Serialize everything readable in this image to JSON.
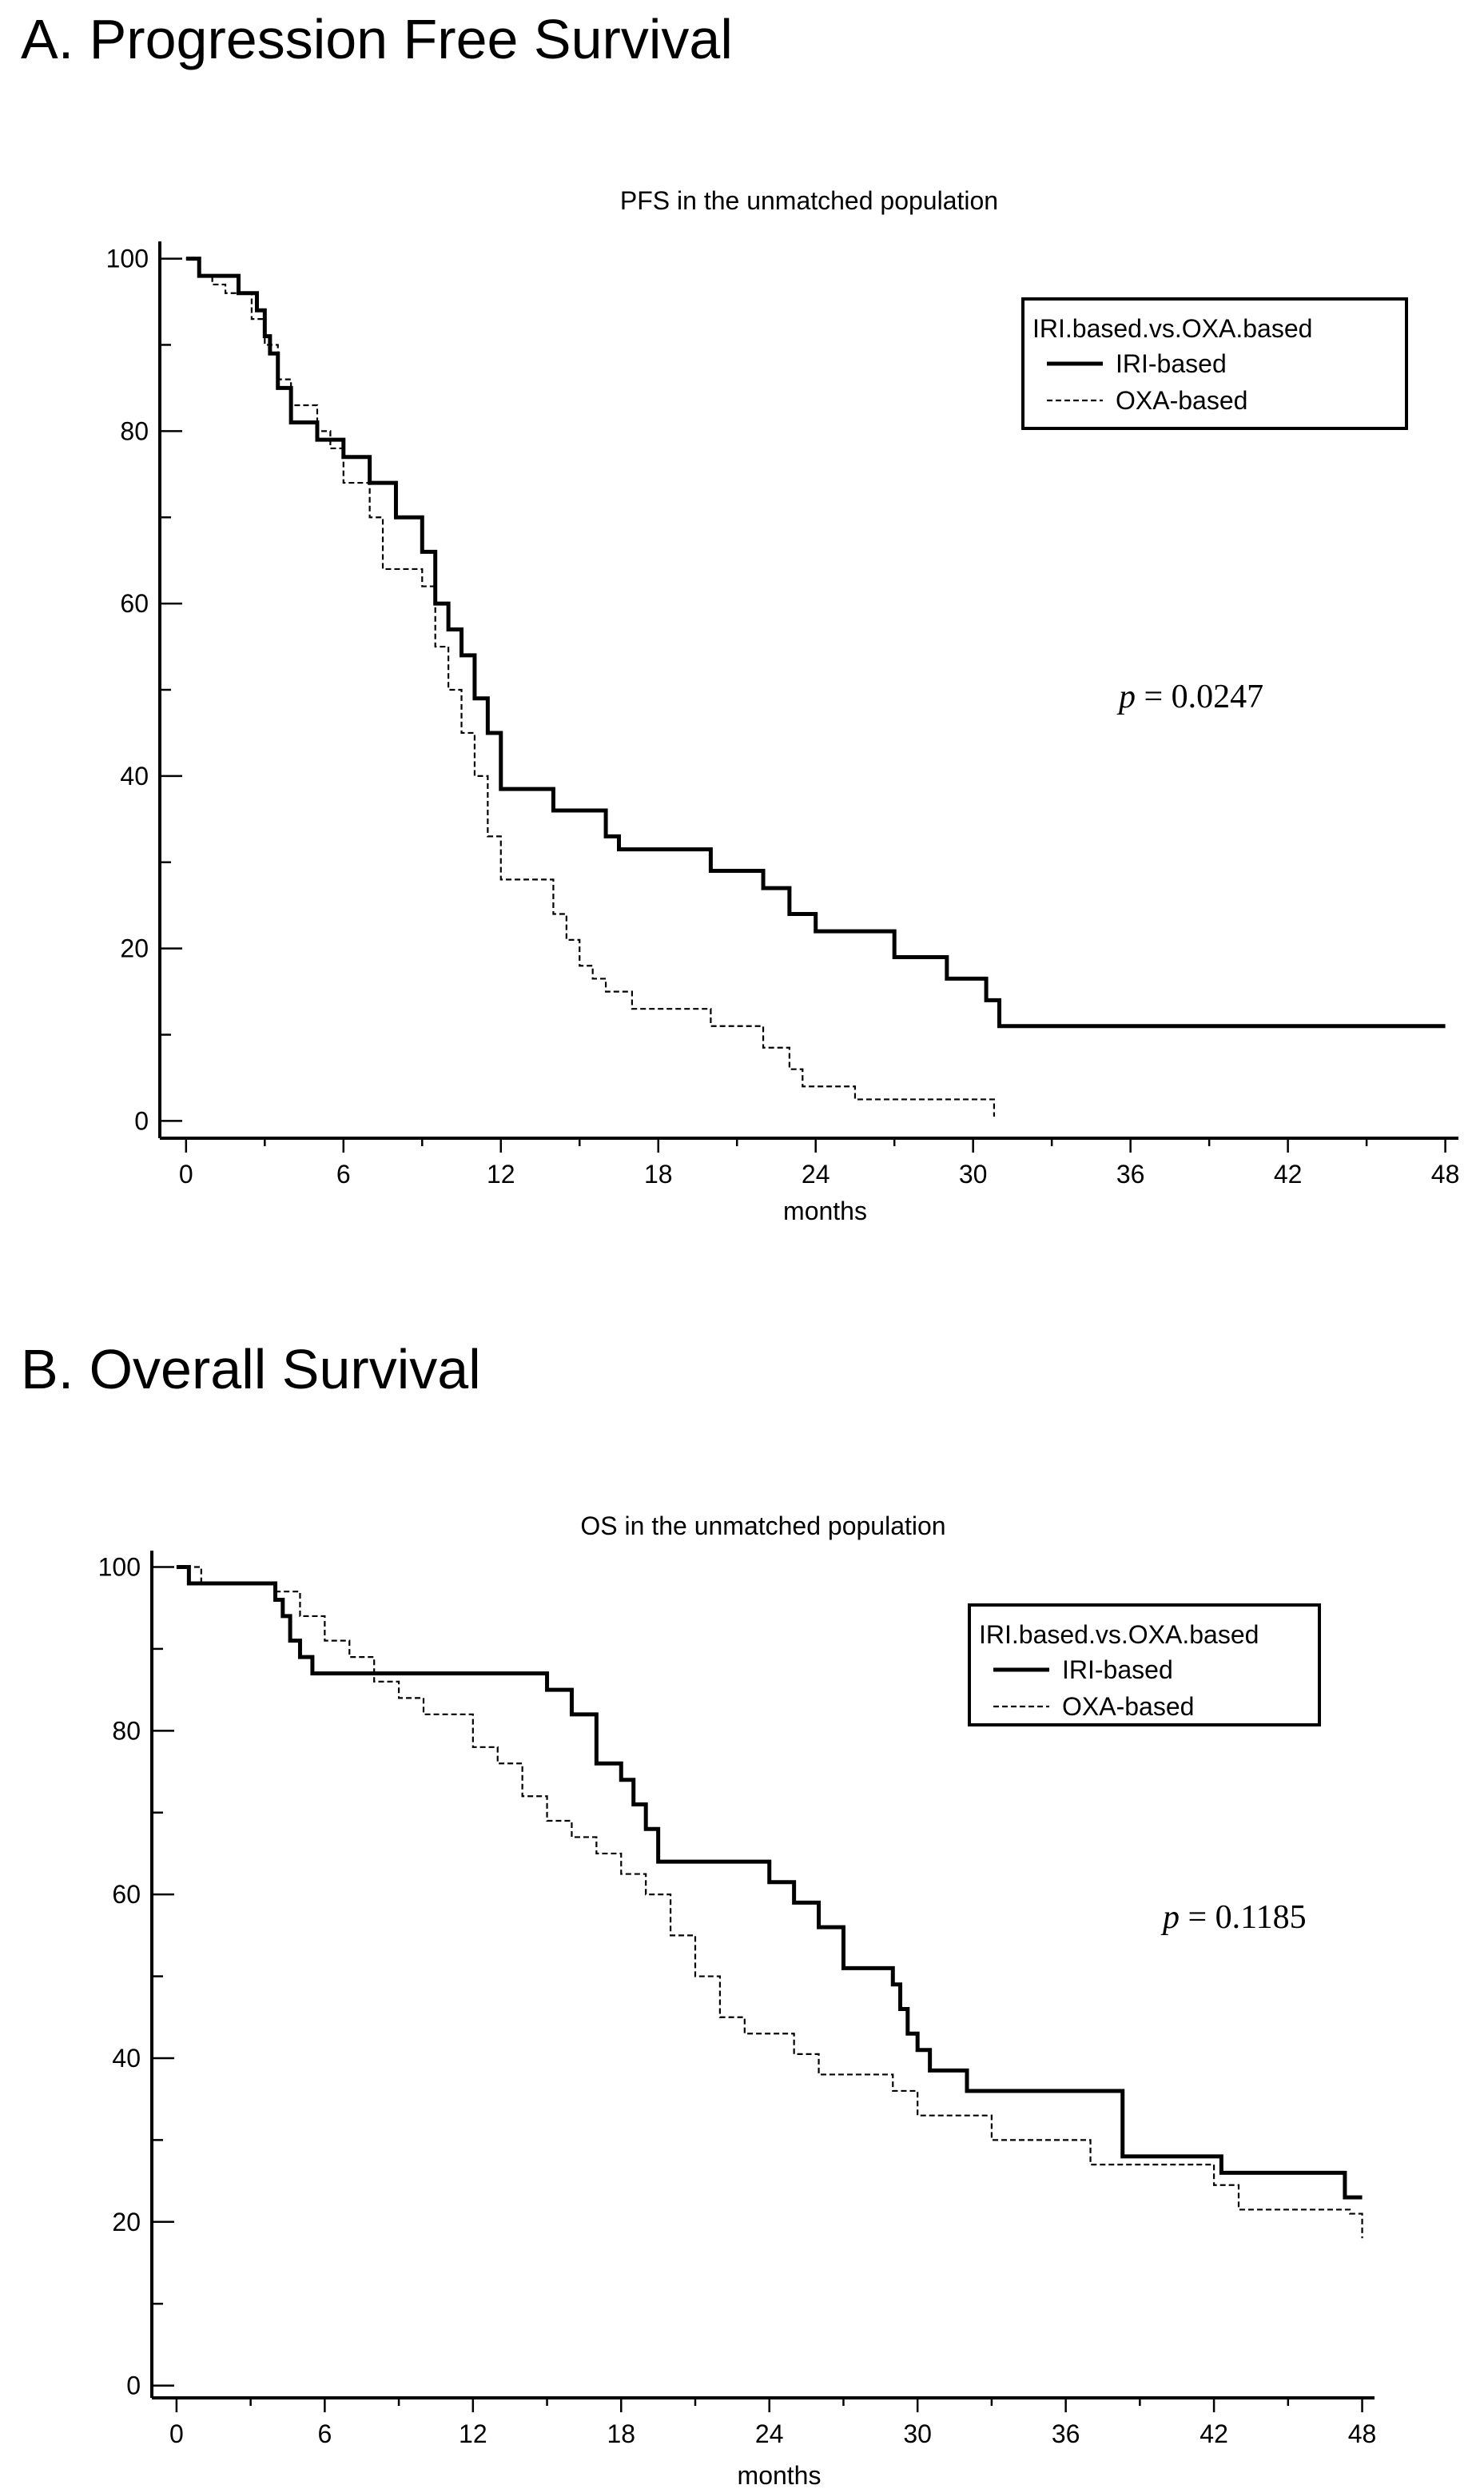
{
  "panels": [
    {
      "heading": "A. Progression Free Survival"
    },
    {
      "heading": "B. Overall Survival"
    }
  ],
  "chart_data": [
    {
      "type": "line",
      "title": "PFS in the unmatched population",
      "xlabel": "months",
      "ylabel": "",
      "xlim": [
        -1,
        48.5
      ],
      "ylim": [
        -2,
        102
      ],
      "xticks": [
        0,
        6,
        12,
        18,
        24,
        30,
        36,
        42,
        48
      ],
      "yticks": [
        0,
        20,
        40,
        60,
        80,
        100
      ],
      "legend": {
        "title": "IRI.based.vs.OXA.based",
        "position": "top-right"
      },
      "annotation": {
        "italic": "p",
        "text": " = 0.0247"
      },
      "series": [
        {
          "name": "IRI-based",
          "style": "solid-thick",
          "x": [
            0,
            0.5,
            2,
            2.7,
            3,
            3.2,
            3.5,
            4,
            5,
            6,
            7,
            8,
            9,
            9.5,
            10,
            10.5,
            11,
            11.5,
            12,
            14,
            16,
            16.5,
            20,
            21,
            22,
            23,
            24,
            27,
            29,
            30.5,
            31,
            48
          ],
          "y": [
            100,
            98,
            96,
            94,
            91,
            89,
            85,
            81,
            79,
            77,
            74,
            70,
            66,
            60,
            57,
            54,
            49,
            45,
            38.5,
            36,
            33,
            31.5,
            29,
            29,
            27,
            24,
            22,
            19,
            16.5,
            14,
            11,
            11
          ]
        },
        {
          "name": "OXA-based",
          "style": "dashed",
          "x": [
            0,
            0.5,
            1,
            1.5,
            2.5,
            3,
            3.5,
            4,
            5,
            5.5,
            6,
            7,
            7.5,
            9,
            9.5,
            10,
            10.5,
            11,
            11.5,
            12,
            14,
            14.5,
            15,
            15.5,
            16,
            17,
            20,
            22,
            23,
            23.5,
            25.5,
            30.5,
            30.8
          ],
          "y": [
            100,
            98,
            97,
            96,
            93,
            90,
            86,
            83,
            80,
            78,
            74,
            70,
            64,
            62,
            55,
            50,
            45,
            40,
            33,
            28,
            24,
            21,
            18,
            16.5,
            15,
            13,
            11,
            8.5,
            6,
            4,
            2.5,
            2.5,
            0.5
          ]
        }
      ]
    },
    {
      "type": "line",
      "title": "OS in the unmatched population",
      "xlabel": "months",
      "ylabel": "",
      "xlim": [
        -1,
        48.5
      ],
      "ylim": [
        -1.5,
        102
      ],
      "xticks": [
        0,
        6,
        12,
        18,
        24,
        30,
        36,
        42,
        48
      ],
      "yticks": [
        0,
        20,
        40,
        60,
        80,
        100
      ],
      "legend": {
        "title": "IRI.based.vs.OXA.based",
        "position": "top-right"
      },
      "annotation": {
        "italic": "p",
        "text": " = 0.1185"
      },
      "series": [
        {
          "name": "IRI-based",
          "style": "solid-thick",
          "x": [
            0,
            0.5,
            4,
            4.3,
            4.6,
            5,
            5.5,
            14,
            15,
            16,
            17,
            18,
            18.5,
            19,
            19.5,
            23,
            24,
            25,
            26,
            27,
            29,
            29.3,
            29.6,
            30,
            30.5,
            32,
            38,
            38.3,
            42,
            42.3,
            47,
            47.3,
            48
          ],
          "y": [
            100,
            98,
            96,
            94,
            91,
            89,
            87,
            87,
            85,
            82,
            76,
            74,
            71,
            68,
            64,
            64,
            61.5,
            59,
            56,
            51,
            49,
            46,
            43,
            41,
            38.5,
            36,
            36,
            28,
            28,
            26,
            26,
            23,
            23
          ]
        },
        {
          "name": "OXA-based",
          "style": "dashed",
          "x": [
            0,
            1,
            3.5,
            4,
            5,
            6,
            7,
            8,
            9,
            10,
            12,
            13,
            14,
            15,
            16,
            17,
            18,
            19,
            20,
            21,
            22,
            23,
            25,
            26,
            29,
            30,
            33,
            37,
            42,
            43,
            47.5,
            48
          ],
          "y": [
            100,
            98,
            98,
            97,
            94,
            91,
            89,
            86,
            84,
            82,
            78,
            76,
            72,
            69,
            67,
            65,
            62.5,
            60,
            55,
            50,
            45,
            43,
            40.5,
            38,
            36,
            33,
            30,
            27,
            24.5,
            21.5,
            21,
            18
          ]
        }
      ]
    }
  ]
}
